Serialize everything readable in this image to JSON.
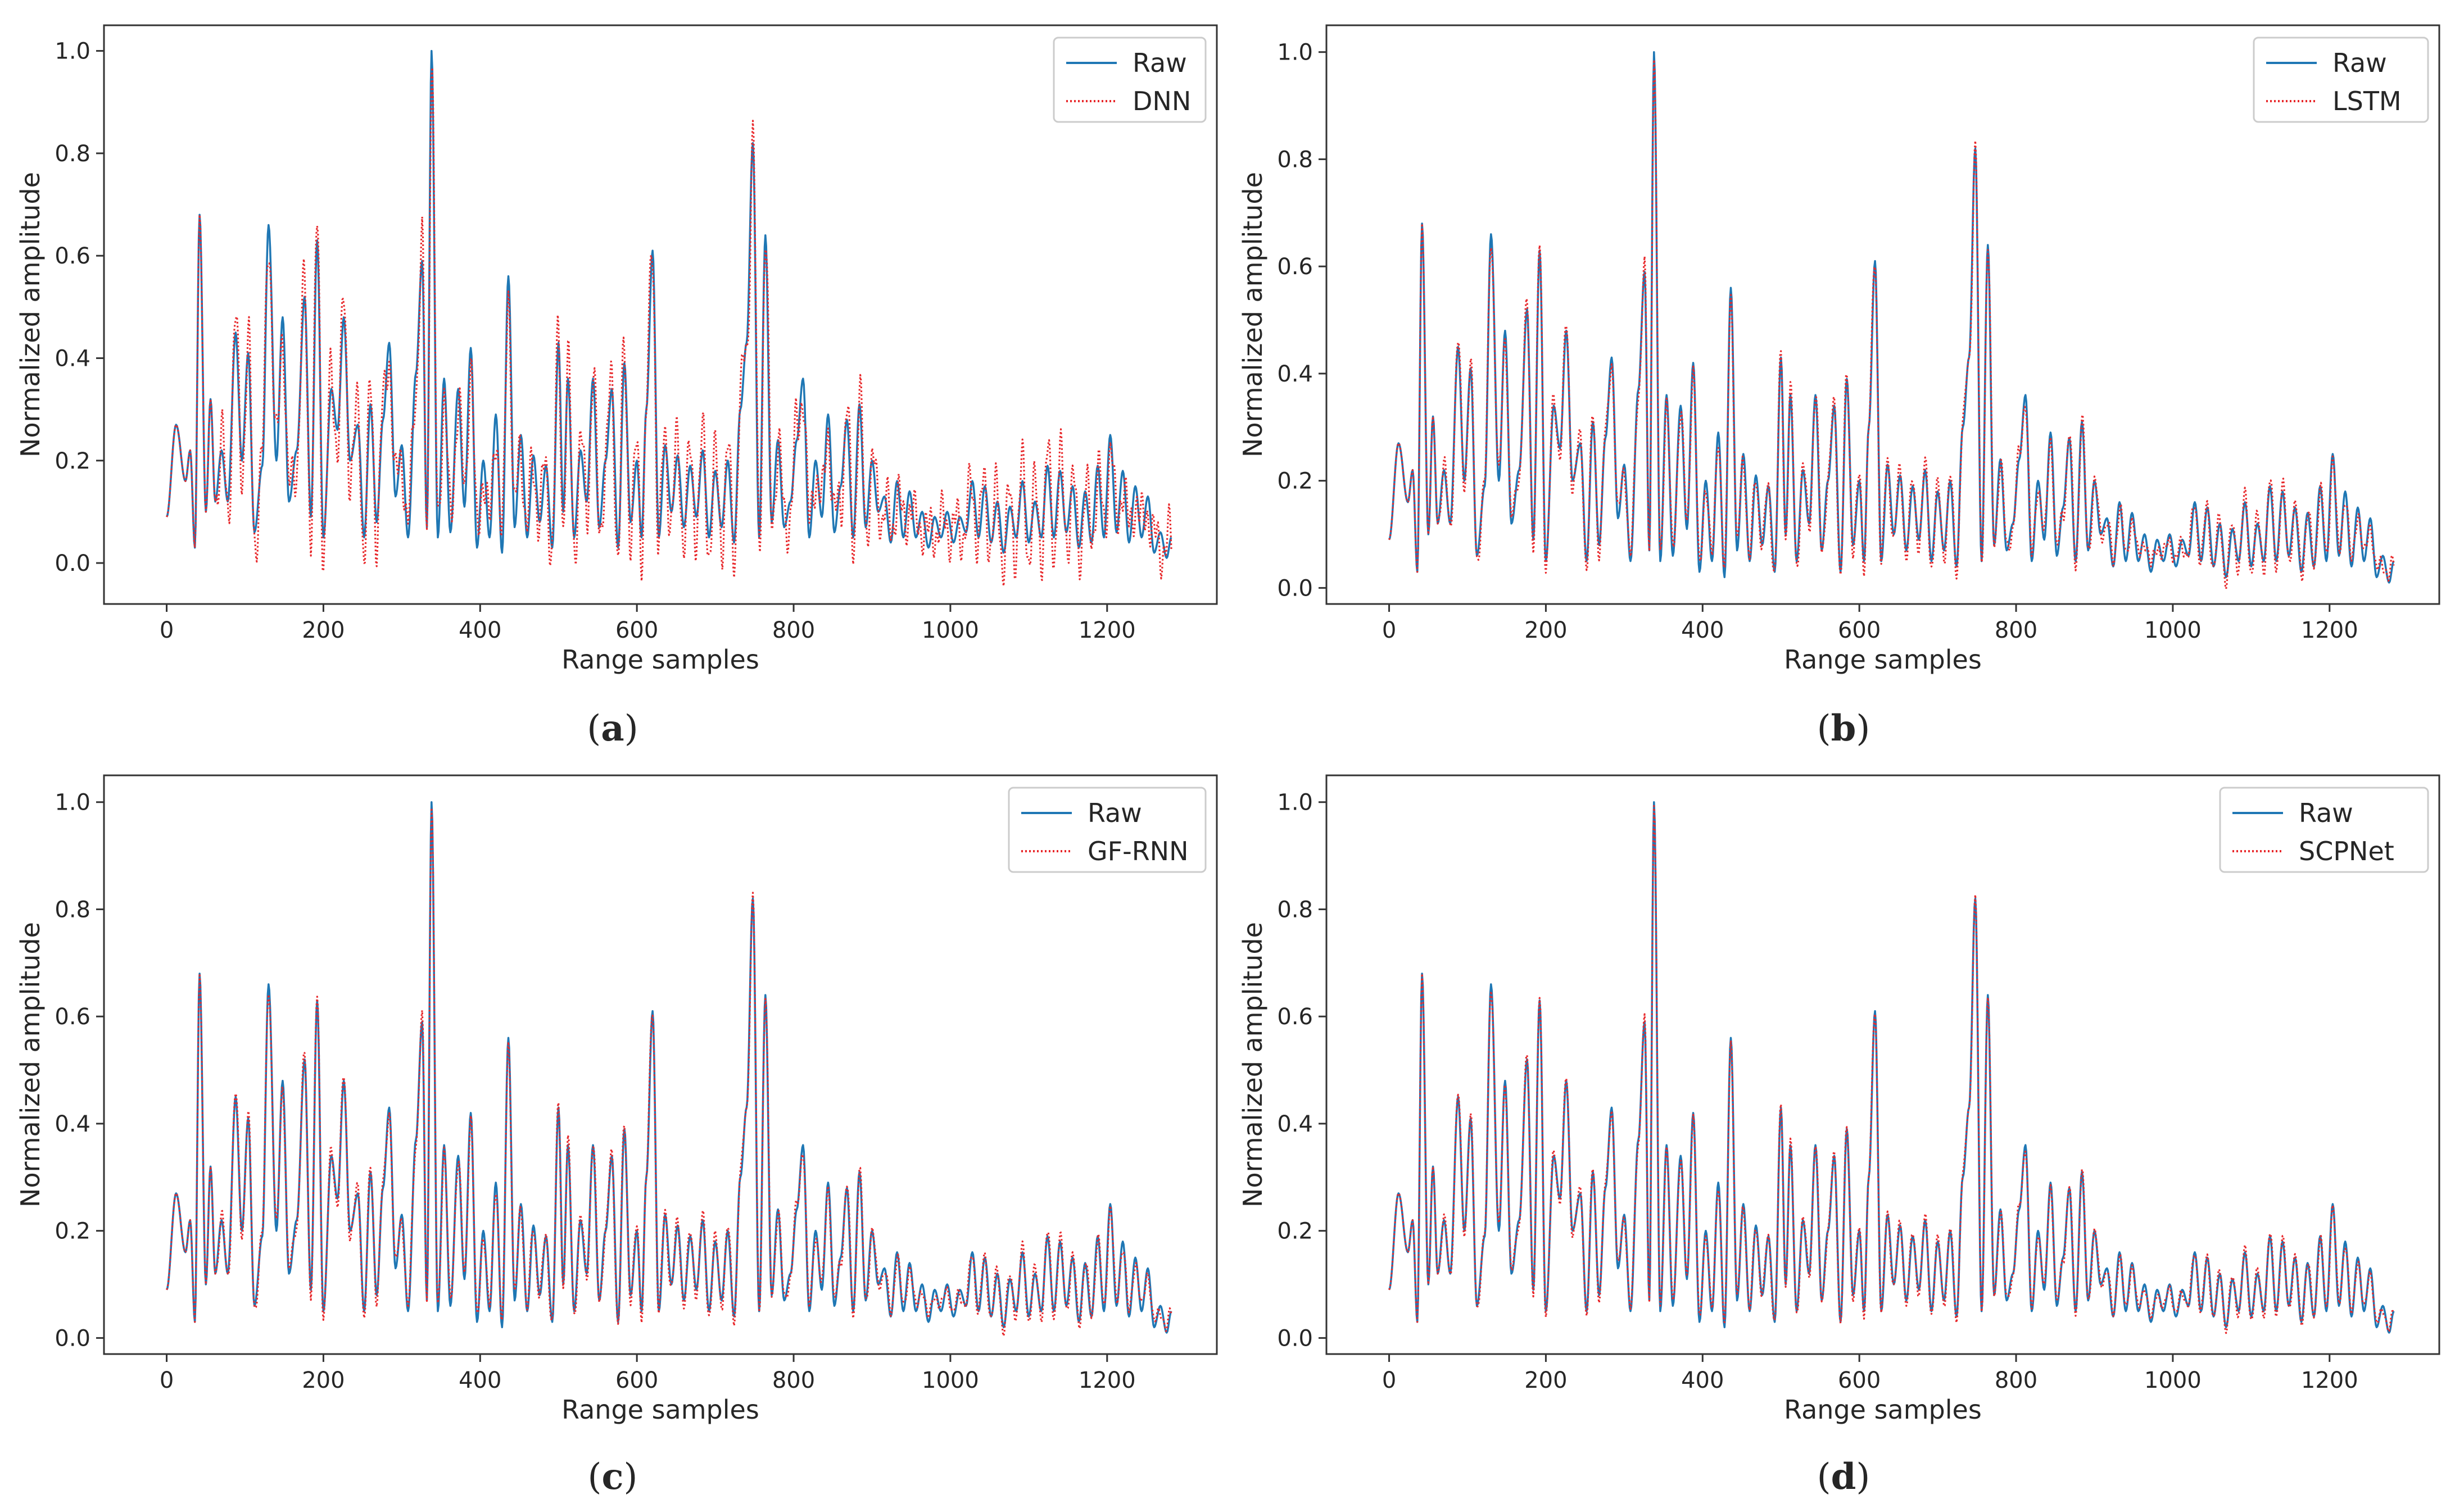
{
  "chart_data": [
    {
      "type": "line",
      "caption": "(a)",
      "xlabel": "Range samples",
      "ylabel": "Normalized amplitude",
      "xlim": [
        -80,
        1340
      ],
      "ylim": [
        -0.08,
        1.05
      ],
      "xticks": [
        0,
        200,
        400,
        600,
        800,
        1000,
        1200
      ],
      "yticks": [
        0.0,
        0.2,
        0.4,
        0.6,
        0.8,
        1.0
      ],
      "grid": false,
      "legend_position": "top-right",
      "series": [
        {
          "name": "Raw",
          "color": "#1f77b4",
          "style": "solid"
        },
        {
          "name": "DNN",
          "color": "#e8282b",
          "style": "dotted"
        }
      ],
      "peaks": [
        [
          0,
          0.09
        ],
        [
          12,
          0.27
        ],
        [
          24,
          0.16
        ],
        [
          30,
          0.22
        ],
        [
          36,
          0.03
        ],
        [
          42,
          0.68
        ],
        [
          50,
          0.1
        ],
        [
          56,
          0.32
        ],
        [
          62,
          0.12
        ],
        [
          70,
          0.22
        ],
        [
          78,
          0.12
        ],
        [
          88,
          0.45
        ],
        [
          96,
          0.2
        ],
        [
          104,
          0.41
        ],
        [
          112,
          0.06
        ],
        [
          122,
          0.19
        ],
        [
          130,
          0.66
        ],
        [
          140,
          0.2
        ],
        [
          148,
          0.48
        ],
        [
          156,
          0.12
        ],
        [
          166,
          0.22
        ],
        [
          176,
          0.52
        ],
        [
          184,
          0.09
        ],
        [
          192,
          0.63
        ],
        [
          200,
          0.05
        ],
        [
          210,
          0.34
        ],
        [
          218,
          0.26
        ],
        [
          226,
          0.48
        ],
        [
          234,
          0.2
        ],
        [
          244,
          0.27
        ],
        [
          252,
          0.05
        ],
        [
          260,
          0.31
        ],
        [
          268,
          0.08
        ],
        [
          276,
          0.28
        ],
        [
          284,
          0.43
        ],
        [
          292,
          0.13
        ],
        [
          300,
          0.23
        ],
        [
          308,
          0.05
        ],
        [
          318,
          0.37
        ],
        [
          326,
          0.59
        ],
        [
          332,
          0.07
        ],
        [
          338,
          1.0
        ],
        [
          346,
          0.05
        ],
        [
          354,
          0.36
        ],
        [
          362,
          0.06
        ],
        [
          372,
          0.34
        ],
        [
          380,
          0.11
        ],
        [
          388,
          0.42
        ],
        [
          396,
          0.03
        ],
        [
          404,
          0.2
        ],
        [
          412,
          0.05
        ],
        [
          420,
          0.29
        ],
        [
          428,
          0.02
        ],
        [
          436,
          0.56
        ],
        [
          444,
          0.07
        ],
        [
          452,
          0.25
        ],
        [
          460,
          0.05
        ],
        [
          468,
          0.21
        ],
        [
          476,
          0.08
        ],
        [
          484,
          0.19
        ],
        [
          492,
          0.03
        ],
        [
          500,
          0.43
        ],
        [
          506,
          0.1
        ],
        [
          512,
          0.36
        ],
        [
          520,
          0.05
        ],
        [
          528,
          0.22
        ],
        [
          536,
          0.12
        ],
        [
          544,
          0.36
        ],
        [
          552,
          0.07
        ],
        [
          560,
          0.2
        ],
        [
          568,
          0.34
        ],
        [
          576,
          0.03
        ],
        [
          584,
          0.39
        ],
        [
          592,
          0.08
        ],
        [
          600,
          0.2
        ],
        [
          606,
          0.05
        ],
        [
          612,
          0.3
        ],
        [
          620,
          0.61
        ],
        [
          628,
          0.05
        ],
        [
          636,
          0.23
        ],
        [
          644,
          0.1
        ],
        [
          652,
          0.21
        ],
        [
          660,
          0.07
        ],
        [
          668,
          0.19
        ],
        [
          676,
          0.09
        ],
        [
          684,
          0.22
        ],
        [
          692,
          0.05
        ],
        [
          700,
          0.18
        ],
        [
          708,
          0.07
        ],
        [
          716,
          0.2
        ],
        [
          724,
          0.04
        ],
        [
          732,
          0.3
        ],
        [
          740,
          0.43
        ],
        [
          748,
          0.82
        ],
        [
          756,
          0.05
        ],
        [
          764,
          0.64
        ],
        [
          772,
          0.08
        ],
        [
          780,
          0.24
        ],
        [
          788,
          0.07
        ],
        [
          796,
          0.12
        ],
        [
          804,
          0.24
        ],
        [
          812,
          0.36
        ],
        [
          820,
          0.05
        ],
        [
          828,
          0.2
        ],
        [
          836,
          0.09
        ],
        [
          844,
          0.29
        ],
        [
          852,
          0.06
        ],
        [
          860,
          0.15
        ],
        [
          868,
          0.28
        ],
        [
          876,
          0.05
        ],
        [
          884,
          0.31
        ],
        [
          892,
          0.07
        ],
        [
          900,
          0.2
        ],
        [
          908,
          0.1
        ],
        [
          916,
          0.13
        ],
        [
          924,
          0.04
        ],
        [
          932,
          0.16
        ],
        [
          940,
          0.05
        ],
        [
          948,
          0.14
        ],
        [
          956,
          0.05
        ],
        [
          964,
          0.1
        ],
        [
          972,
          0.03
        ],
        [
          980,
          0.09
        ],
        [
          988,
          0.05
        ],
        [
          996,
          0.1
        ],
        [
          1004,
          0.04
        ],
        [
          1012,
          0.09
        ],
        [
          1020,
          0.06
        ],
        [
          1028,
          0.16
        ],
        [
          1036,
          0.05
        ],
        [
          1044,
          0.15
        ],
        [
          1052,
          0.04
        ],
        [
          1060,
          0.12
        ],
        [
          1068,
          0.02
        ],
        [
          1076,
          0.11
        ],
        [
          1084,
          0.05
        ],
        [
          1092,
          0.16
        ],
        [
          1100,
          0.04
        ],
        [
          1108,
          0.12
        ],
        [
          1116,
          0.05
        ],
        [
          1124,
          0.19
        ],
        [
          1132,
          0.05
        ],
        [
          1140,
          0.18
        ],
        [
          1148,
          0.06
        ],
        [
          1156,
          0.15
        ],
        [
          1164,
          0.03
        ],
        [
          1172,
          0.14
        ],
        [
          1180,
          0.04
        ],
        [
          1188,
          0.19
        ],
        [
          1196,
          0.05
        ],
        [
          1204,
          0.25
        ],
        [
          1212,
          0.06
        ],
        [
          1220,
          0.18
        ],
        [
          1228,
          0.04
        ],
        [
          1236,
          0.15
        ],
        [
          1244,
          0.05
        ],
        [
          1252,
          0.13
        ],
        [
          1260,
          0.02
        ],
        [
          1268,
          0.06
        ],
        [
          1276,
          0.01
        ],
        [
          1282,
          0.05
        ]
      ],
      "model_offset": 0.06
    },
    {
      "type": "line",
      "caption": "(b)",
      "xlabel": "Range samples",
      "ylabel": "Normalized amplitude",
      "xlim": [
        -80,
        1340
      ],
      "ylim": [
        -0.03,
        1.05
      ],
      "xticks": [
        0,
        200,
        400,
        600,
        800,
        1000,
        1200
      ],
      "yticks": [
        0.0,
        0.2,
        0.4,
        0.6,
        0.8,
        1.0
      ],
      "grid": false,
      "legend_position": "top-right",
      "series": [
        {
          "name": "Raw",
          "color": "#1f77b4",
          "style": "solid"
        },
        {
          "name": "LSTM",
          "color": "#e8282b",
          "style": "dotted"
        }
      ],
      "peaks": "same-as-a",
      "model_offset": 0.02
    },
    {
      "type": "line",
      "caption": "(c)",
      "xlabel": "Range samples",
      "ylabel": "Normalized amplitude",
      "xlim": [
        -80,
        1340
      ],
      "ylim": [
        -0.03,
        1.05
      ],
      "xticks": [
        0,
        200,
        400,
        600,
        800,
        1000,
        1200
      ],
      "yticks": [
        0.0,
        0.2,
        0.4,
        0.6,
        0.8,
        1.0
      ],
      "grid": false,
      "legend_position": "top-right",
      "series": [
        {
          "name": "Raw",
          "color": "#1f77b4",
          "style": "solid"
        },
        {
          "name": "GF-RNN",
          "color": "#e8282b",
          "style": "dotted"
        }
      ],
      "peaks": "same-as-a",
      "model_offset": 0.015
    },
    {
      "type": "line",
      "caption": "(d)",
      "xlabel": "Range samples",
      "ylabel": "Normalized amplitude",
      "xlim": [
        -80,
        1340
      ],
      "ylim": [
        -0.03,
        1.05
      ],
      "xticks": [
        0,
        200,
        400,
        600,
        800,
        1000,
        1200
      ],
      "yticks": [
        0.0,
        0.2,
        0.4,
        0.6,
        0.8,
        1.0
      ],
      "grid": false,
      "legend_position": "top-right",
      "series": [
        {
          "name": "Raw",
          "color": "#1f77b4",
          "style": "solid"
        },
        {
          "name": "SCPNet",
          "color": "#e8282b",
          "style": "dotted"
        }
      ],
      "peaks": "same-as-a",
      "model_offset": 0.01
    }
  ]
}
